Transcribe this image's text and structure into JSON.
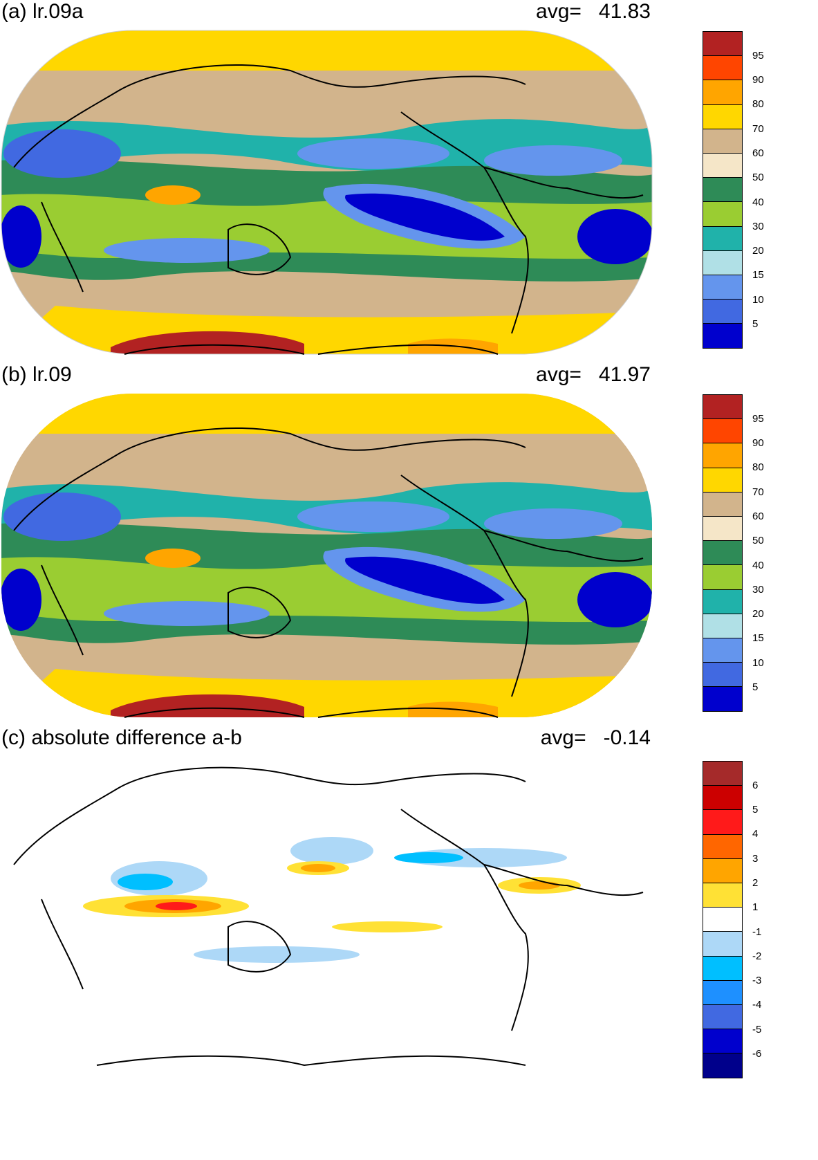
{
  "panels": [
    {
      "id": "a",
      "title": "(a) lr.09a",
      "avg_label": "avg=",
      "avg_value": "41.83",
      "colorbar": {
        "labels": [
          "95",
          "90",
          "80",
          "70",
          "60",
          "50",
          "40",
          "30",
          "20",
          "15",
          "10",
          "5"
        ],
        "colors": [
          "#b22222",
          "#ff4500",
          "#ffa500",
          "#ffd700",
          "#d2b48c",
          "#f5e6c8",
          "#2e8b57",
          "#9acd32",
          "#20b2aa",
          "#b0e0e6",
          "#6495ed",
          "#4169e1",
          "#0000cd"
        ]
      }
    },
    {
      "id": "b",
      "title": "(b) lr.09",
      "avg_label": "avg=",
      "avg_value": "41.97",
      "colorbar": {
        "labels": [
          "95",
          "90",
          "80",
          "70",
          "60",
          "50",
          "40",
          "30",
          "20",
          "15",
          "10",
          "5"
        ],
        "colors": [
          "#b22222",
          "#ff4500",
          "#ffa500",
          "#ffd700",
          "#d2b48c",
          "#f5e6c8",
          "#2e8b57",
          "#9acd32",
          "#20b2aa",
          "#b0e0e6",
          "#6495ed",
          "#4169e1",
          "#0000cd"
        ]
      }
    },
    {
      "id": "c",
      "title": "(c) absolute difference a-b",
      "avg_label": "avg=",
      "avg_value": "-0.14",
      "colorbar": {
        "labels": [
          "6",
          "5",
          "4",
          "3",
          "2",
          "1",
          "-1",
          "-2",
          "-3",
          "-4",
          "-5",
          "-6"
        ],
        "colors": [
          "#a52a2a",
          "#cc0000",
          "#ff1a1a",
          "#ff6600",
          "#ffa500",
          "#ffe135",
          "#ffffff",
          "#add8f7",
          "#00bfff",
          "#1e90ff",
          "#4169e1",
          "#0000cd",
          "#00008b"
        ]
      }
    }
  ]
}
